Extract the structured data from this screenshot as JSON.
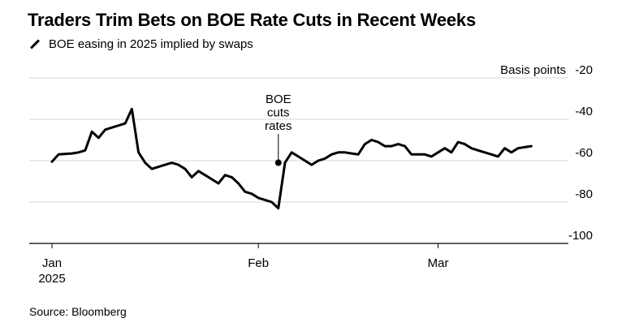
{
  "chart_data": {
    "type": "line",
    "title": "Traders Trim Bets on BOE Rate Cuts in Recent Weeks",
    "legend": [
      "BOE easing in 2025 implied by swaps"
    ],
    "ylabel": "Basis points",
    "ylim": [
      -100,
      -20
    ],
    "yticks": [
      -20,
      -40,
      -60,
      -80,
      -100
    ],
    "xticks": [
      {
        "day": 0,
        "label": "Jan",
        "sublabel": "2025"
      },
      {
        "day": 31,
        "label": "Feb",
        "sublabel": ""
      },
      {
        "day": 58,
        "label": "Mar",
        "sublabel": ""
      }
    ],
    "annotation": {
      "day": 34,
      "value": -61,
      "lines": [
        "BOE",
        "cuts",
        "rates"
      ]
    },
    "series": [
      {
        "name": "BOE easing in 2025 implied by swaps",
        "color": "#000000",
        "x": [
          0,
          1,
          3,
          4,
          5,
          6,
          7,
          8,
          9,
          10,
          11,
          12,
          13,
          14,
          15,
          16,
          17,
          18,
          19,
          20,
          21,
          22,
          23,
          24,
          25,
          26,
          27,
          28,
          29,
          30,
          31,
          32,
          33,
          34,
          35,
          36,
          37,
          38,
          39,
          40,
          41,
          42,
          43,
          44,
          45,
          46,
          47,
          48,
          49,
          50,
          51,
          52,
          53,
          54,
          55,
          56,
          57,
          58,
          59,
          60,
          61,
          62,
          63,
          64,
          65,
          66,
          67,
          68,
          69,
          70,
          71,
          72
        ],
        "values": [
          -60.5,
          -57,
          -56.5,
          -56,
          -55,
          -46,
          -49,
          -45,
          -44,
          -43,
          -42,
          -35,
          -56,
          -61,
          -64,
          -63,
          -62,
          -61,
          -62,
          -64,
          -68,
          -65,
          -67,
          -69,
          -71,
          -67,
          -68,
          -71,
          -75,
          -76,
          -78,
          -79,
          -80,
          -83,
          -61,
          -56,
          -58,
          -60,
          -62,
          -60,
          -59,
          -57,
          -56,
          -56,
          -56.5,
          -57,
          -52,
          -50,
          -51,
          -53,
          -53,
          -52,
          -53,
          -57,
          -57,
          -57,
          -58,
          -56,
          -54,
          -56,
          -51,
          -52,
          -54,
          -55,
          -56,
          -57,
          -58,
          -54,
          -56,
          -54,
          -53.5,
          -53
        ]
      }
    ]
  },
  "source": "Source: Bloomberg"
}
